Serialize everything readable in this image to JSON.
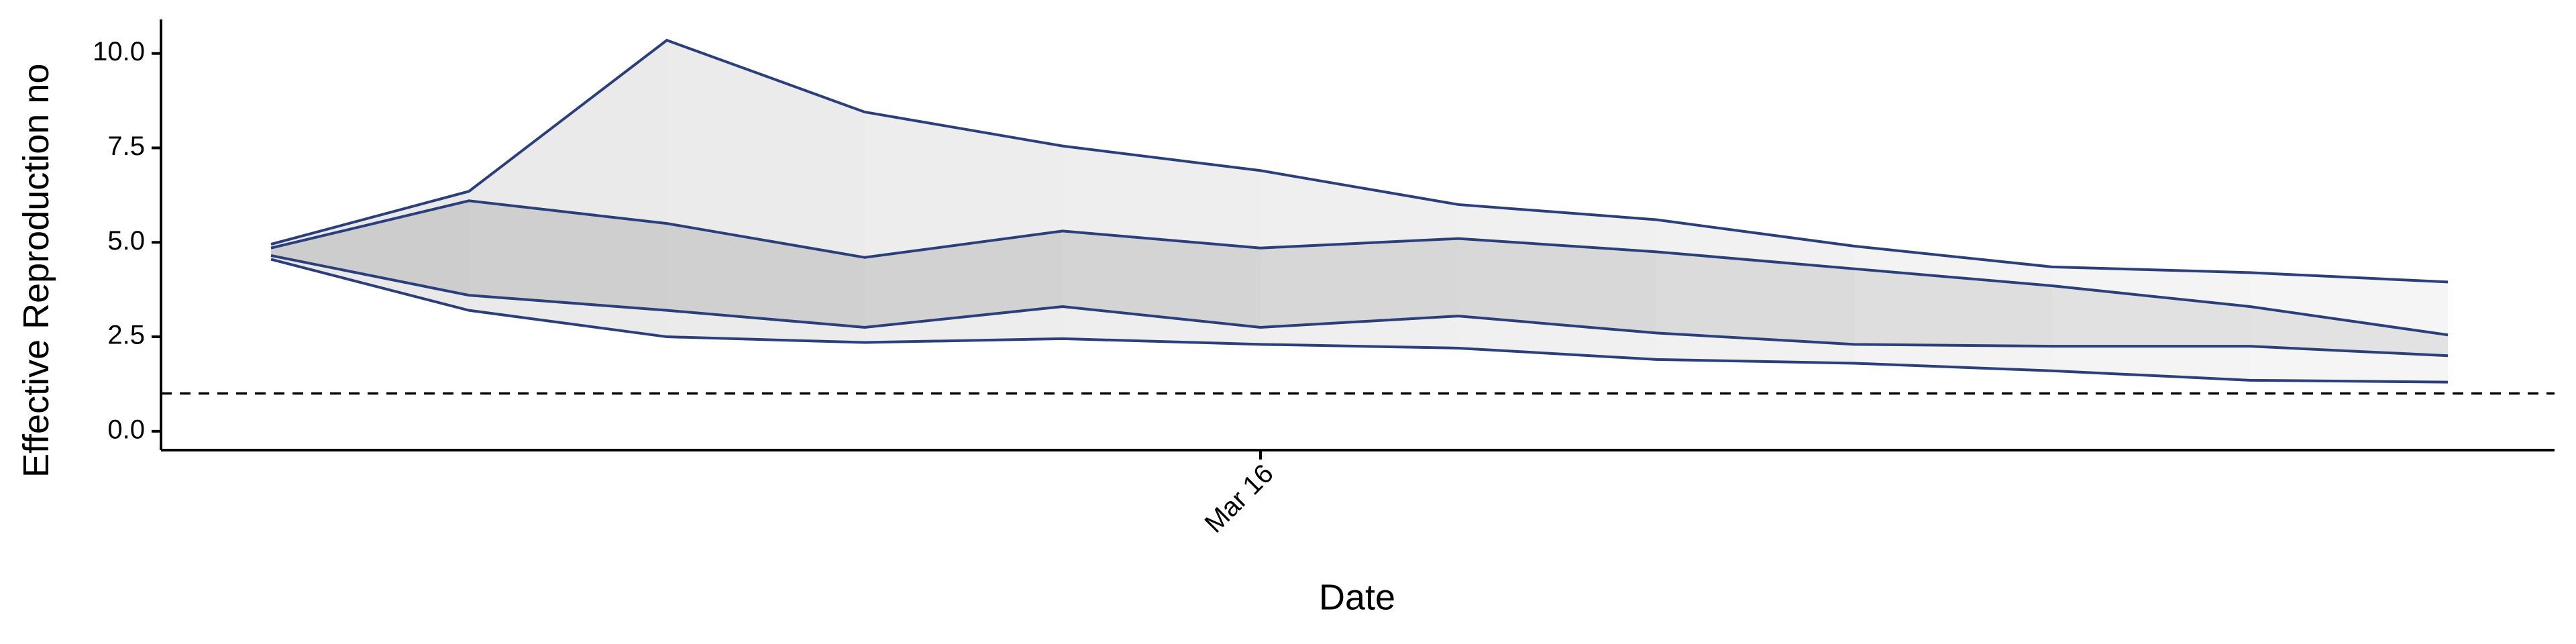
{
  "chart_data": {
    "type": "ribbon",
    "x_label": "Date",
    "y_label": "Effective Reproduction no",
    "categories": [
      null,
      null,
      null,
      null,
      null,
      "Mar 16",
      null,
      null,
      null,
      null,
      null,
      null
    ],
    "series": [
      {
        "color": "#2b3f7a",
        "values": [
          4.95,
          6.35,
          10.35,
          8.45,
          7.55,
          6.9,
          6.0,
          5.6,
          4.9,
          4.35,
          4.2,
          3.95
        ]
      },
      {
        "color": "#2b3f7a",
        "values": [
          4.85,
          6.1,
          5.5,
          4.6,
          5.3,
          4.85,
          5.1,
          4.75,
          4.3,
          3.85,
          3.3,
          2.55
        ]
      },
      {
        "color": "#2b3f7a",
        "values": [
          4.65,
          3.6,
          3.2,
          2.75,
          3.3,
          2.75,
          3.05,
          2.6,
          2.3,
          2.25,
          2.25,
          2.0
        ]
      },
      {
        "color": "#2b3f7a",
        "values": [
          4.55,
          3.2,
          2.5,
          2.35,
          2.45,
          2.3,
          2.2,
          1.9,
          1.8,
          1.6,
          1.35,
          1.3
        ]
      }
    ],
    "band_colors": [
      "#e9e9e9",
      "#cdcdcd"
    ],
    "reference_line": 1,
    "ylim": [
      -0.5,
      10.9
    ],
    "yticks": [
      {
        "value": 0,
        "label": "0.0"
      },
      {
        "value": 2.5,
        "label": "2.5"
      },
      {
        "value": 5,
        "label": "5.0"
      },
      {
        "value": 7.5,
        "label": "7.5"
      },
      {
        "value": 10,
        "label": "10.0"
      }
    ],
    "grid": false
  }
}
